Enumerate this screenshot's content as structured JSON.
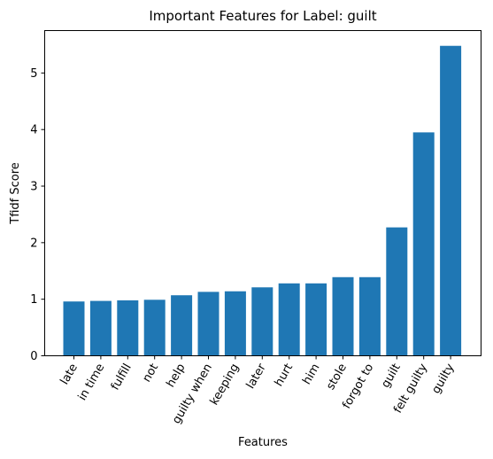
{
  "chart_data": {
    "type": "bar",
    "title": "Important Features for Label: guilt",
    "xlabel": "Features",
    "ylabel": "Tfidf Score",
    "categories": [
      "late",
      "in time",
      "fulfill",
      "not",
      "help",
      "guilty when",
      "keeping",
      "later",
      "hurt",
      "him",
      "stole",
      "forgot to",
      "guilt",
      "felt guilty",
      "guilty"
    ],
    "values": [
      0.96,
      0.97,
      0.98,
      0.99,
      1.07,
      1.13,
      1.14,
      1.21,
      1.28,
      1.28,
      1.39,
      1.39,
      2.27,
      3.95,
      5.48
    ],
    "ylim": [
      0,
      5.75
    ],
    "yticks": [
      0,
      1,
      2,
      3,
      4,
      5
    ],
    "grid": false,
    "bar_color": "#1f77b4"
  }
}
